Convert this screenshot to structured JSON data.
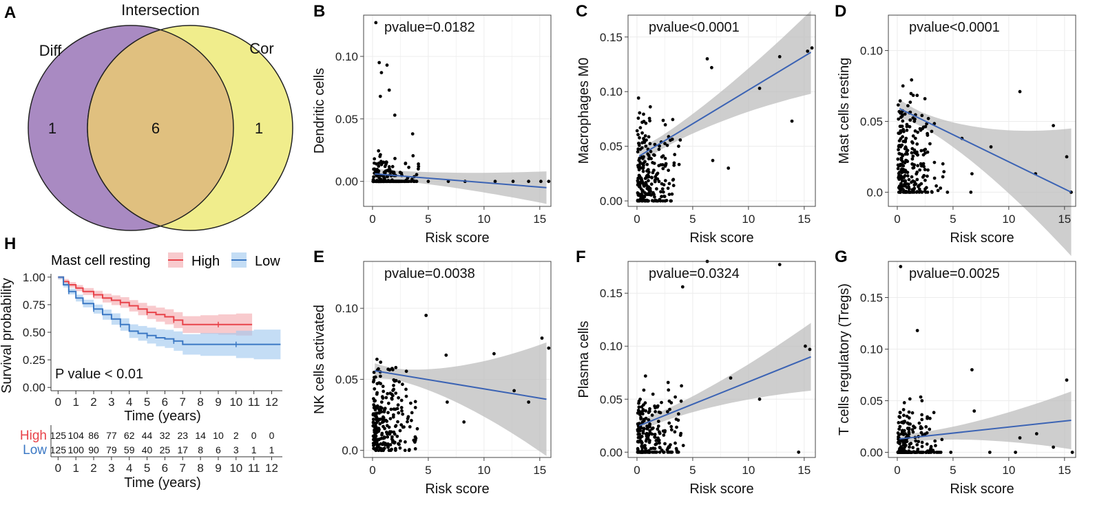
{
  "chart_data": [
    {
      "panel": "A",
      "type": "venn",
      "title": "Intersection",
      "sets": [
        {
          "name": "Diff",
          "only_count": "1",
          "color": "#a98ac2"
        },
        {
          "name": "Cor",
          "only_count": "1",
          "color": "#f0ed8c"
        }
      ],
      "intersection_count": "6",
      "intersection_color": "#e0c07f"
    },
    {
      "panel": "B",
      "type": "scatter",
      "xlabel": "Risk score",
      "ylabel": "Dendritic cells",
      "pvalue_text": "pvalue=0.0182",
      "xlim": [
        -0.8,
        16
      ],
      "ylim": [
        -0.02,
        0.133
      ],
      "xticks": [
        "0",
        "5",
        "10",
        "15"
      ],
      "yticks": [
        "0.00",
        "0.05",
        "0.10"
      ],
      "fit": {
        "x0": 0.2,
        "y0": 0.006,
        "x1": 15.6,
        "y1": -0.005,
        "band0": 0.004,
        "band1": 0.013
      },
      "points_seed": 11,
      "n_points": 200,
      "x_scale": 1.4,
      "y_scale": 0.012,
      "zero_frac": 0.55,
      "y_max": 0.1,
      "outliers": [
        [
          0.3,
          0.127
        ],
        [
          0.6,
          0.095
        ],
        [
          1.3,
          0.093
        ],
        [
          0.8,
          0.087
        ],
        [
          1.5,
          0.073
        ],
        [
          0.7,
          0.068
        ],
        [
          2.0,
          0.053
        ],
        [
          3.6,
          0.038
        ],
        [
          5.0,
          0.0
        ],
        [
          6.8,
          0.0
        ],
        [
          8.3,
          0.0
        ],
        [
          11.0,
          0.0
        ],
        [
          12.6,
          0.0
        ],
        [
          14.0,
          0.0
        ],
        [
          15.1,
          0.0
        ],
        [
          15.8,
          0.0
        ]
      ]
    },
    {
      "panel": "C",
      "type": "scatter",
      "xlabel": "Risk score",
      "ylabel": "Macrophages M0",
      "pvalue_text": "pvalue<0.0001",
      "xlim": [
        -0.8,
        16
      ],
      "ylim": [
        -0.005,
        0.17
      ],
      "xticks": [
        "0",
        "5",
        "10",
        "15"
      ],
      "yticks": [
        "0.00",
        "0.05",
        "0.10",
        "0.15"
      ],
      "fit": {
        "x0": 0.2,
        "y0": 0.041,
        "x1": 15.6,
        "y1": 0.136,
        "band0": 0.006,
        "band1": 0.038
      },
      "points_seed": 23,
      "n_points": 230,
      "x_scale": 1.4,
      "y_scale": 0.045,
      "zero_frac": 0.12,
      "y_max": 0.16,
      "outliers": [
        [
          6.3,
          0.13
        ],
        [
          6.7,
          0.122
        ],
        [
          6.8,
          0.037
        ],
        [
          8.2,
          0.03
        ],
        [
          11.0,
          0.103
        ],
        [
          12.8,
          0.132
        ],
        [
          13.9,
          0.073
        ],
        [
          15.3,
          0.137
        ],
        [
          15.7,
          0.14
        ]
      ]
    },
    {
      "panel": "D",
      "type": "scatter",
      "xlabel": "Risk score",
      "ylabel": "Mast cells resting",
      "pvalue_text": "pvalue<0.0001",
      "xlim": [
        -0.8,
        16
      ],
      "ylim": [
        -0.01,
        0.125
      ],
      "xticks": [
        "0",
        "5",
        "10",
        "15"
      ],
      "yticks": [
        "0.0",
        "0.05",
        "0.10"
      ],
      "fit": {
        "x0": 0.2,
        "y0": 0.059,
        "x1": 15.6,
        "y1": 0.0,
        "band0": 0.005,
        "band1": 0.045
      },
      "points_seed": 37,
      "n_points": 240,
      "x_scale": 1.3,
      "y_scale": 0.04,
      "zero_frac": 0.1,
      "y_max": 0.122,
      "outliers": [
        [
          4.5,
          0.0
        ],
        [
          5.8,
          0.038
        ],
        [
          6.7,
          0.013
        ],
        [
          6.6,
          0.0
        ],
        [
          8.4,
          0.032
        ],
        [
          11.0,
          0.071
        ],
        [
          12.4,
          0.013
        ],
        [
          14.0,
          0.047
        ],
        [
          15.2,
          0.025
        ],
        [
          15.6,
          0.0
        ]
      ]
    },
    {
      "panel": "E",
      "type": "scatter",
      "xlabel": "Risk score",
      "ylabel": "NK cells activated",
      "pvalue_text": "pvalue=0.0038",
      "xlim": [
        -0.8,
        16
      ],
      "ylim": [
        -0.005,
        0.133
      ],
      "xticks": [
        "0",
        "5",
        "10",
        "15"
      ],
      "yticks": [
        "0.0",
        "0.05",
        "0.10"
      ],
      "fit": {
        "x0": 0.2,
        "y0": 0.056,
        "x1": 15.6,
        "y1": 0.036,
        "band0": 0.004,
        "band1": 0.04
      },
      "points_seed": 51,
      "n_points": 240,
      "x_scale": 1.2,
      "y_scale": 0.035,
      "zero_frac": 0.05,
      "y_max": 0.13,
      "outliers": [
        [
          4.8,
          0.095
        ],
        [
          6.6,
          0.067
        ],
        [
          6.7,
          0.034
        ],
        [
          8.2,
          0.02
        ],
        [
          10.9,
          0.068
        ],
        [
          12.7,
          0.042
        ],
        [
          14.0,
          0.034
        ],
        [
          15.2,
          0.079
        ],
        [
          15.8,
          0.072
        ]
      ]
    },
    {
      "panel": "F",
      "type": "scatter",
      "xlabel": "Risk score",
      "ylabel": "Plasma cells",
      "pvalue_text": "pvalue=0.0324",
      "xlim": [
        -0.8,
        16
      ],
      "ylim": [
        -0.005,
        0.18
      ],
      "xticks": [
        "0",
        "5",
        "10",
        "15"
      ],
      "yticks": [
        "0.00",
        "0.05",
        "0.10",
        "0.15"
      ],
      "fit": {
        "x0": 0.2,
        "y0": 0.025,
        "x1": 15.6,
        "y1": 0.09,
        "band0": 0.005,
        "band1": 0.032
      },
      "points_seed": 67,
      "n_points": 230,
      "x_scale": 1.4,
      "y_scale": 0.035,
      "zero_frac": 0.25,
      "y_max": 0.142,
      "outliers": [
        [
          6.3,
          0.18
        ],
        [
          4.1,
          0.156
        ],
        [
          8.4,
          0.07
        ],
        [
          11.0,
          0.05
        ],
        [
          12.8,
          0.177
        ],
        [
          14.5,
          0.0
        ],
        [
          15.1,
          0.1
        ],
        [
          15.5,
          0.097
        ]
      ]
    },
    {
      "panel": "G",
      "type": "scatter",
      "xlabel": "Risk score",
      "ylabel": "T cells regulatory (Tregs)",
      "pvalue_text": "pvalue=0.0025",
      "xlim": [
        -0.8,
        16
      ],
      "ylim": [
        -0.005,
        0.185
      ],
      "xticks": [
        "0",
        "5",
        "10",
        "15"
      ],
      "yticks": [
        "0.00",
        "0.05",
        "0.10",
        "0.15"
      ],
      "fit": {
        "x0": 0.2,
        "y0": 0.013,
        "x1": 15.6,
        "y1": 0.031,
        "band0": 0.004,
        "band1": 0.028
      },
      "points_seed": 79,
      "n_points": 220,
      "x_scale": 1.3,
      "y_scale": 0.028,
      "zero_frac": 0.45,
      "y_max": 0.123,
      "outliers": [
        [
          0.3,
          0.18
        ],
        [
          1.8,
          0.118
        ],
        [
          4.8,
          0.0
        ],
        [
          6.7,
          0.08
        ],
        [
          6.9,
          0.04
        ],
        [
          8.3,
          0.0
        ],
        [
          10.6,
          0.0
        ],
        [
          11.0,
          0.014
        ],
        [
          12.5,
          0.018
        ],
        [
          14.0,
          0.005
        ],
        [
          15.2,
          0.07
        ],
        [
          15.7,
          0.0
        ]
      ]
    },
    {
      "panel": "H",
      "type": "kaplan-meier",
      "legend_title": "Mast cell resting",
      "xlabel": "Time (years)",
      "ylabel": "Survival probability",
      "pvalue_text": "P value < 0.01",
      "xlim": [
        -0.4,
        12.6
      ],
      "ylim": [
        -0.03,
        1.03
      ],
      "xticks": [
        "0",
        "1",
        "2",
        "3",
        "4",
        "5",
        "6",
        "7",
        "8",
        "9",
        "10",
        "11",
        "12"
      ],
      "yticks": [
        "0.00",
        "0.25",
        "0.50",
        "0.75",
        "1.00"
      ],
      "groups": [
        {
          "name": "High",
          "color": "#e8434a",
          "band_color": "#f3a7ac",
          "times": [
            0,
            0.3,
            0.6,
            1.0,
            1.4,
            2.0,
            2.5,
            3.0,
            3.5,
            4.0,
            4.5,
            5.0,
            5.5,
            6.0,
            6.5,
            7.0,
            8.0,
            9.0,
            10.0,
            10.9
          ],
          "survival": [
            1.0,
            0.96,
            0.93,
            0.9,
            0.87,
            0.84,
            0.81,
            0.79,
            0.77,
            0.74,
            0.71,
            0.68,
            0.66,
            0.64,
            0.61,
            0.57,
            0.57,
            0.57,
            0.57,
            0.57
          ]
        },
        {
          "name": "Low",
          "color": "#3b78c4",
          "band_color": "#9cc7ee",
          "times": [
            0,
            0.3,
            0.6,
            1.0,
            1.4,
            2.0,
            2.5,
            3.0,
            3.5,
            4.0,
            4.5,
            5.0,
            5.5,
            6.0,
            6.5,
            7.0,
            8.0,
            10.0,
            11.0,
            12.5
          ],
          "survival": [
            1.0,
            0.93,
            0.87,
            0.81,
            0.76,
            0.71,
            0.66,
            0.62,
            0.57,
            0.51,
            0.49,
            0.47,
            0.45,
            0.44,
            0.42,
            0.39,
            0.39,
            0.39,
            0.39,
            0.39
          ]
        }
      ],
      "risk_table": {
        "xlabel": "Time (years)",
        "xticks": [
          "0",
          "1",
          "2",
          "3",
          "4",
          "5",
          "6",
          "7",
          "8",
          "9",
          "10",
          "11",
          "12"
        ],
        "rows": [
          {
            "name": "High",
            "color": "#e8434a",
            "counts": [
              "125",
              "104",
              "86",
              "77",
              "62",
              "44",
              "32",
              "23",
              "14",
              "10",
              "2",
              "0",
              "0"
            ]
          },
          {
            "name": "Low",
            "color": "#3b78c4",
            "counts": [
              "125",
              "100",
              "90",
              "79",
              "59",
              "40",
              "25",
              "17",
              "8",
              "6",
              "3",
              "1",
              "1"
            ]
          }
        ]
      }
    }
  ]
}
